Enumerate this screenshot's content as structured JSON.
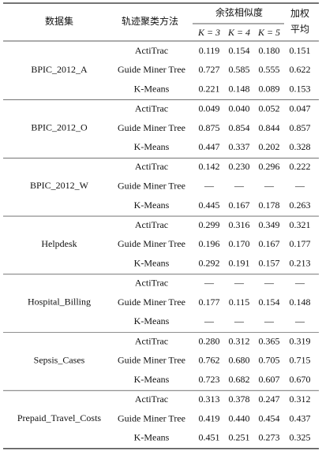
{
  "header": {
    "dataset": "数据集",
    "method": "轨迹聚类方法",
    "cosine": "余弦相似度",
    "k_columns": [
      "K = 3",
      "K = 4",
      "K = 5"
    ],
    "weighted": [
      "加权",
      "平均"
    ]
  },
  "table": {
    "groups": [
      {
        "dataset": "BPIC_2012_A",
        "rows": [
          {
            "method": "ActiTrac",
            "values": [
              "0.119",
              "0.154",
              "0.180",
              "0.151"
            ]
          },
          {
            "method": "Guide Miner Tree",
            "values": [
              "0.727",
              "0.585",
              "0.555",
              "0.622"
            ]
          },
          {
            "method": "K-Means",
            "values": [
              "0.221",
              "0.148",
              "0.089",
              "0.153"
            ]
          }
        ]
      },
      {
        "dataset": "BPIC_2012_O",
        "rows": [
          {
            "method": "ActiTrac",
            "values": [
              "0.049",
              "0.040",
              "0.052",
              "0.047"
            ]
          },
          {
            "method": "Guide Miner Tree",
            "values": [
              "0.875",
              "0.854",
              "0.844",
              "0.857"
            ]
          },
          {
            "method": "K-Means",
            "values": [
              "0.447",
              "0.337",
              "0.202",
              "0.328"
            ]
          }
        ]
      },
      {
        "dataset": "BPIC_2012_W",
        "rows": [
          {
            "method": "ActiTrac",
            "values": [
              "0.142",
              "0.230",
              "0.296",
              "0.222"
            ]
          },
          {
            "method": "Guide Miner Tree",
            "values": [
              "—",
              "—",
              "—",
              "—"
            ]
          },
          {
            "method": "K-Means",
            "values": [
              "0.445",
              "0.167",
              "0.178",
              "0.263"
            ]
          }
        ]
      },
      {
        "dataset": "Helpdesk",
        "rows": [
          {
            "method": "ActiTrac",
            "values": [
              "0.299",
              "0.316",
              "0.349",
              "0.321"
            ]
          },
          {
            "method": "Guide Miner Tree",
            "values": [
              "0.196",
              "0.170",
              "0.167",
              "0.177"
            ]
          },
          {
            "method": "K-Means",
            "values": [
              "0.292",
              "0.191",
              "0.157",
              "0.213"
            ]
          }
        ]
      },
      {
        "dataset": "Hospital_Billing",
        "rows": [
          {
            "method": "ActiTrac",
            "values": [
              "—",
              "—",
              "—",
              "—"
            ]
          },
          {
            "method": "Guide Miner Tree",
            "values": [
              "0.177",
              "0.115",
              "0.154",
              "0.148"
            ]
          },
          {
            "method": "K-Means",
            "values": [
              "—",
              "—",
              "—",
              "—"
            ]
          }
        ]
      },
      {
        "dataset": "Sepsis_Cases",
        "rows": [
          {
            "method": "ActiTrac",
            "values": [
              "0.280",
              "0.312",
              "0.365",
              "0.319"
            ]
          },
          {
            "method": "Guide Miner Tree",
            "values": [
              "0.762",
              "0.680",
              "0.705",
              "0.715"
            ]
          },
          {
            "method": "K-Means",
            "values": [
              "0.723",
              "0.682",
              "0.607",
              "0.670"
            ]
          }
        ]
      },
      {
        "dataset": "Prepaid_Travel_Costs",
        "rows": [
          {
            "method": "ActiTrac",
            "values": [
              "0.313",
              "0.378",
              "0.247",
              "0.312"
            ]
          },
          {
            "method": "Guide Miner Tree",
            "values": [
              "0.419",
              "0.440",
              "0.454",
              "0.437"
            ]
          },
          {
            "method": "K-Means",
            "values": [
              "0.451",
              "0.251",
              "0.273",
              "0.325"
            ]
          }
        ]
      }
    ]
  }
}
